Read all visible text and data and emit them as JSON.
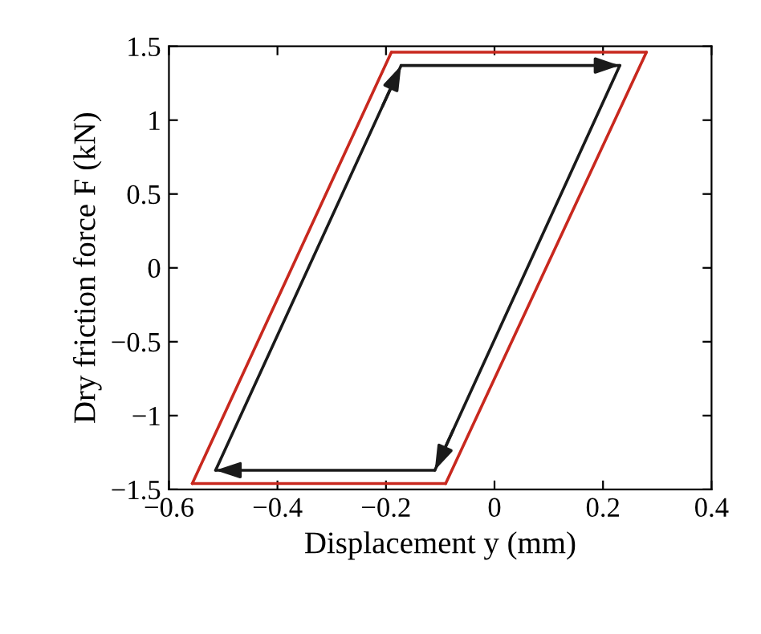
{
  "chart_data": {
    "type": "line",
    "xlabel": "Displacement y (mm)",
    "ylabel": "Dry friction force F (kN)",
    "series": [
      {
        "color": "#c8281e",
        "x": [
          -0.557,
          -0.19
        ],
        "values": [
          -1.46,
          1.46
        ]
      },
      {
        "color": "#c8281e",
        "x": [
          -0.19,
          0.28
        ],
        "values": [
          1.46,
          1.46
        ]
      },
      {
        "color": "#c8281e",
        "x": [
          -0.09,
          0.28
        ],
        "values": [
          -1.46,
          1.46
        ]
      },
      {
        "color": "#c8281e",
        "x": [
          -0.557,
          -0.09
        ],
        "values": [
          -1.46,
          -1.46
        ]
      },
      {
        "color": "#1a1a1a",
        "x": [
          -0.514,
          -0.172
        ],
        "values": [
          -1.37,
          1.37
        ]
      },
      {
        "color": "#1a1a1a",
        "x": [
          -0.172,
          0.231
        ],
        "values": [
          1.37,
          1.37
        ]
      },
      {
        "color": "#1a1a1a",
        "x": [
          -0.11,
          0.231
        ],
        "values": [
          -1.37,
          1.37
        ]
      },
      {
        "color": "#1a1a1a",
        "x": [
          -0.514,
          -0.11
        ],
        "values": [
          -1.37,
          -1.37
        ]
      }
    ],
    "xlim": [
      -0.6,
      0.4
    ],
    "ylim": [
      -1.5,
      1.5
    ],
    "xticks": [
      {
        "value": -0.6,
        "label": "−0.6"
      },
      {
        "value": -0.4,
        "label": "−0.4"
      },
      {
        "value": -0.2,
        "label": "−0.2"
      },
      0,
      0.2,
      0.4
    ],
    "yticks": [
      {
        "value": -1.5,
        "label": "−1.5"
      },
      {
        "value": -1,
        "label": "−1"
      },
      {
        "value": -0.5,
        "label": "−0.5"
      },
      0,
      0.5,
      1,
      1.5
    ],
    "grid": false,
    "legend": false,
    "marker": "none",
    "line_style": "solid"
  }
}
